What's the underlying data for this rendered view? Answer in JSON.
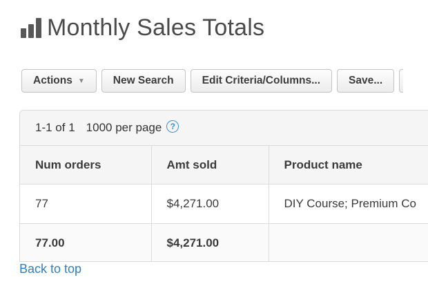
{
  "page": {
    "title": "Monthly Sales Totals",
    "icon": "bar-chart-icon"
  },
  "toolbar": {
    "actions_label": "Actions",
    "new_search_label": "New Search",
    "edit_criteria_label": "Edit Criteria/Columns...",
    "save_label": "Save..."
  },
  "pager": {
    "range": "1-1 of 1",
    "per_page": "1000 per page",
    "help_glyph": "?"
  },
  "table": {
    "columns": [
      "Num orders",
      "Amt sold",
      "Product name"
    ],
    "rows": [
      [
        "77",
        "$4,271.00",
        "DIY Course; Premium Co"
      ]
    ],
    "totals": [
      "77.00",
      "$4,271.00",
      ""
    ]
  },
  "footer": {
    "back_to_top": "Back to top"
  },
  "colors": {
    "link": "#2f7fc1",
    "header_bg": "#f5f5f5",
    "border": "#dcdcdc"
  }
}
